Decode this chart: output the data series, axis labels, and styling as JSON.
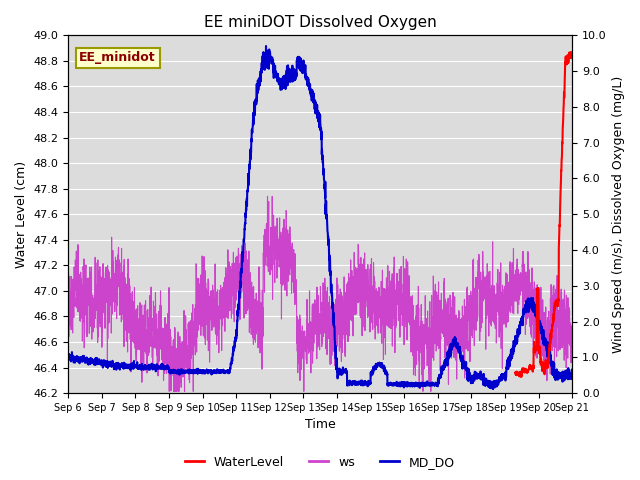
{
  "title": "EE miniDOT Dissolved Oxygen",
  "ylabel_left": "Water Level (cm)",
  "ylabel_right": "Wind Speed (m/s), Dissolved Oxygen (mg/L)",
  "xlabel": "Time",
  "legend_label": "EE_minidot",
  "ylim_left": [
    46.2,
    49.0
  ],
  "ylim_right": [
    0.0,
    10.0
  ],
  "background_color": "#dcdcdc",
  "series": {
    "WaterLevel": {
      "color": "#ff0000",
      "linewidth": 1.5
    },
    "ws": {
      "color": "#cc44cc",
      "linewidth": 0.8
    },
    "MD_DO": {
      "color": "#0000cc",
      "linewidth": 1.5
    }
  },
  "xtick_labels": [
    "Sep 6",
    "Sep 7",
    "Sep 8",
    "Sep 9",
    "Sep 10",
    "Sep 11",
    "Sep 12",
    "Sep 13",
    "Sep 14",
    "Sep 15",
    "Sep 16",
    "Sep 17",
    "Sep 18",
    "Sep 19",
    "Sep 20",
    "Sep 21"
  ],
  "title_fontsize": 11,
  "axis_fontsize": 9,
  "tick_fontsize": 8
}
